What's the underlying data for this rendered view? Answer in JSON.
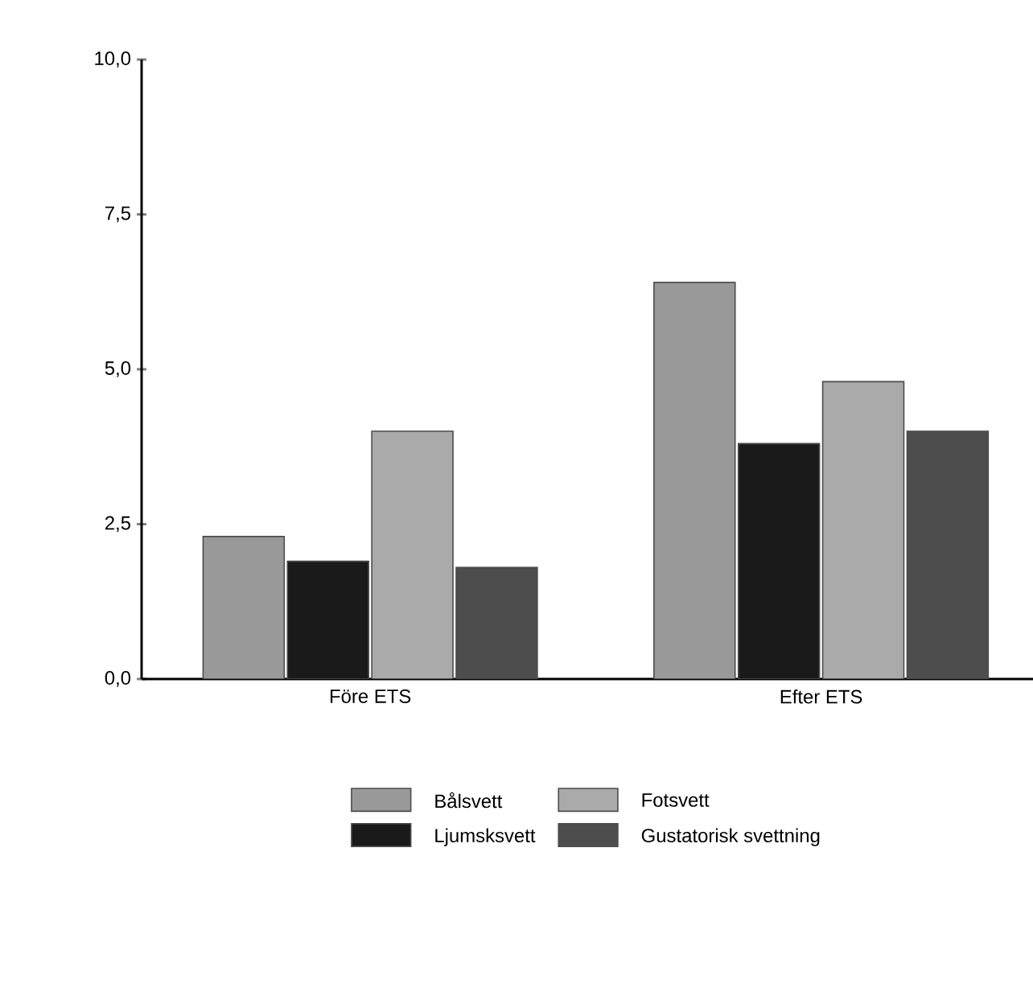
{
  "chart_data": {
    "type": "bar",
    "categories": [
      "Före ETS",
      "Efter ETS"
    ],
    "series": [
      {
        "name": "Bålsvett",
        "color": "#999999",
        "values": [
          2.3,
          6.4
        ]
      },
      {
        "name": "Ljumsksvett",
        "color": "#1a1a1a",
        "values": [
          1.9,
          3.8
        ]
      },
      {
        "name": "Fotsvett",
        "color": "#aaaaaa",
        "values": [
          4.0,
          4.8
        ]
      },
      {
        "name": "Gustatorisk svettning",
        "color": "#4d4d4d",
        "values": [
          1.8,
          4.0
        ]
      }
    ],
    "ylim": [
      0,
      10
    ],
    "yticks": [
      {
        "value": 0,
        "label": "0,0"
      },
      {
        "value": 2.5,
        "label": "2,5"
      },
      {
        "value": 5,
        "label": "5,0"
      },
      {
        "value": 7.5,
        "label": "7,5"
      },
      {
        "value": 10,
        "label": "10,0"
      }
    ],
    "grid": false,
    "legend": "bottom"
  }
}
